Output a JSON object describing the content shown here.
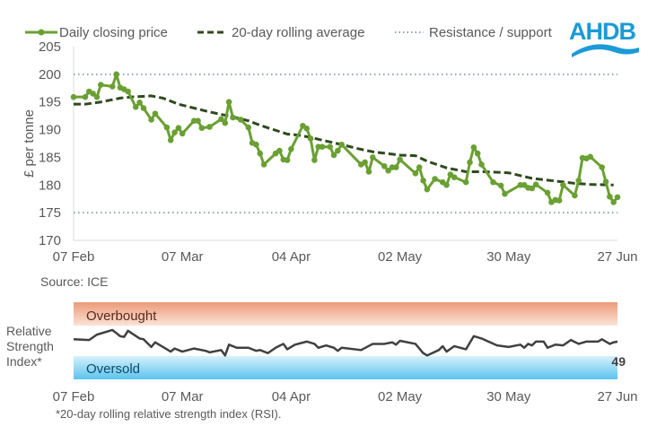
{
  "logo": {
    "text": "AHDB",
    "color": "#1a9ad6"
  },
  "colors": {
    "price": "#6aa033",
    "rolling": "#2f4a1f",
    "levels": "#8fa3b3",
    "rsi": "#404040",
    "overbought": "#f0a080",
    "oversold": "#7fd0f0"
  },
  "chart_data": [
    {
      "type": "line",
      "ylabel": "£ per tonne",
      "ylim": [
        170,
        205
      ],
      "yticks": [
        "170",
        "175",
        "180",
        "185",
        "190",
        "195",
        "200",
        "205"
      ],
      "xlim": [
        "2022-02-07",
        "2022-06-27"
      ],
      "xticks": [
        {
          "date": "2022-02-07",
          "label": "07 Feb"
        },
        {
          "date": "2022-03-07",
          "label": "07 Mar"
        },
        {
          "date": "2022-04-04",
          "label": "04 Apr"
        },
        {
          "date": "2022-05-02",
          "label": "02 May"
        },
        {
          "date": "2022-05-30",
          "label": "30 May"
        },
        {
          "date": "2022-06-27",
          "label": "27 Jun"
        }
      ],
      "legend": {
        "position": "top",
        "items": [
          "Daily closing price",
          "20-day rolling average",
          "Resistance / support"
        ]
      },
      "source": "Source: ICE",
      "levels": {
        "resistance": 200,
        "support": 175
      },
      "series": [
        {
          "name": "Daily closing price",
          "style": "solid-markers",
          "points": [
            [
              "2022-02-07",
              195.9
            ],
            [
              "2022-02-10",
              195.9
            ],
            [
              "2022-02-11",
              196.9
            ],
            [
              "2022-02-12",
              196.5
            ],
            [
              "2022-02-13",
              195.9
            ],
            [
              "2022-02-14",
              198.1
            ],
            [
              "2022-02-17",
              197.8
            ],
            [
              "2022-02-18",
              200.0
            ],
            [
              "2022-02-19",
              197.6
            ],
            [
              "2022-02-20",
              197.3
            ],
            [
              "2022-02-21",
              196.9
            ],
            [
              "2022-02-23",
              194.1
            ],
            [
              "2022-02-24",
              194.9
            ],
            [
              "2022-02-25",
              193.9
            ],
            [
              "2022-02-27",
              191.8
            ],
            [
              "2022-02-28",
              192.9
            ],
            [
              "2022-03-03",
              190.4
            ],
            [
              "2022-03-04",
              188.1
            ],
            [
              "2022-03-05",
              189.5
            ],
            [
              "2022-03-06",
              190.3
            ],
            [
              "2022-03-07",
              189.3
            ],
            [
              "2022-03-10",
              191.6
            ],
            [
              "2022-03-11",
              191.6
            ],
            [
              "2022-03-12",
              190.3
            ],
            [
              "2022-03-14",
              190.5
            ],
            [
              "2022-03-17",
              191.9
            ],
            [
              "2022-03-18",
              191.2
            ],
            [
              "2022-03-19",
              195.0
            ],
            [
              "2022-03-20",
              192.2
            ],
            [
              "2022-03-22",
              191.8
            ],
            [
              "2022-03-24",
              190.4
            ],
            [
              "2022-03-25",
              187.6
            ],
            [
              "2022-03-26",
              187.3
            ],
            [
              "2022-03-27",
              185.7
            ],
            [
              "2022-03-28",
              183.7
            ],
            [
              "2022-03-31",
              185.7
            ],
            [
              "2022-04-01",
              186.2
            ],
            [
              "2022-04-02",
              184.6
            ],
            [
              "2022-04-03",
              184.5
            ],
            [
              "2022-04-04",
              186.5
            ],
            [
              "2022-04-07",
              190.7
            ],
            [
              "2022-04-08",
              190.2
            ],
            [
              "2022-04-09",
              188.4
            ],
            [
              "2022-04-10",
              184.5
            ],
            [
              "2022-04-11",
              186.9
            ],
            [
              "2022-04-12",
              186.9
            ],
            [
              "2022-04-14",
              186.9
            ],
            [
              "2022-04-15",
              185.4
            ],
            [
              "2022-04-16",
              186.2
            ],
            [
              "2022-04-17",
              187.3
            ],
            [
              "2022-04-22",
              183.7
            ],
            [
              "2022-04-23",
              184.1
            ],
            [
              "2022-04-24",
              182.4
            ],
            [
              "2022-04-25",
              185.0
            ],
            [
              "2022-04-28",
              183.4
            ],
            [
              "2022-04-29",
              182.6
            ],
            [
              "2022-04-30",
              183.2
            ],
            [
              "2022-05-01",
              183.2
            ],
            [
              "2022-05-02",
              184.6
            ],
            [
              "2022-05-06",
              182.1
            ],
            [
              "2022-05-07",
              183.2
            ],
            [
              "2022-05-08",
              180.8
            ],
            [
              "2022-05-09",
              179.2
            ],
            [
              "2022-05-11",
              181.1
            ],
            [
              "2022-05-13",
              180.5
            ],
            [
              "2022-05-14",
              180.0
            ],
            [
              "2022-05-15",
              181.9
            ],
            [
              "2022-05-16",
              181.4
            ],
            [
              "2022-05-19",
              180.5
            ],
            [
              "2022-05-20",
              184.1
            ],
            [
              "2022-05-21",
              186.8
            ],
            [
              "2022-05-22",
              185.7
            ],
            [
              "2022-05-23",
              183.7
            ],
            [
              "2022-05-26",
              180.5
            ],
            [
              "2022-05-28",
              179.9
            ],
            [
              "2022-05-29",
              178.4
            ],
            [
              "2022-06-02",
              180.0
            ],
            [
              "2022-06-03",
              180.0
            ],
            [
              "2022-06-04",
              179.5
            ],
            [
              "2022-06-05",
              179.4
            ],
            [
              "2022-06-06",
              180.1
            ],
            [
              "2022-06-09",
              178.6
            ],
            [
              "2022-06-10",
              176.9
            ],
            [
              "2022-06-11",
              177.3
            ],
            [
              "2022-06-12",
              177.2
            ],
            [
              "2022-06-13",
              180.0
            ],
            [
              "2022-06-16",
              178.1
            ],
            [
              "2022-06-17",
              180.8
            ],
            [
              "2022-06-18",
              184.9
            ],
            [
              "2022-06-19",
              184.8
            ],
            [
              "2022-06-20",
              185.1
            ],
            [
              "2022-06-23",
              183.2
            ],
            [
              "2022-06-24",
              180.6
            ],
            [
              "2022-06-25",
              177.9
            ],
            [
              "2022-06-26",
              176.9
            ],
            [
              "2022-06-27",
              177.8
            ]
          ]
        },
        {
          "name": "20-day rolling average",
          "style": "dashed",
          "points": [
            [
              "2022-02-07",
              194.6
            ],
            [
              "2022-02-10",
              194.6
            ],
            [
              "2022-02-14",
              195.0
            ],
            [
              "2022-02-19",
              195.7
            ],
            [
              "2022-02-22",
              195.9
            ],
            [
              "2022-02-27",
              196.1
            ],
            [
              "2022-03-02",
              195.7
            ],
            [
              "2022-03-06",
              194.6
            ],
            [
              "2022-03-14",
              193.2
            ],
            [
              "2022-03-20",
              192.3
            ],
            [
              "2022-03-24",
              191.6
            ],
            [
              "2022-03-27",
              190.8
            ],
            [
              "2022-04-03",
              189.2
            ],
            [
              "2022-04-06",
              189.0
            ],
            [
              "2022-04-09",
              188.6
            ],
            [
              "2022-04-12",
              188.1
            ],
            [
              "2022-04-17",
              187.3
            ],
            [
              "2022-04-21",
              186.6
            ],
            [
              "2022-04-25",
              186.0
            ],
            [
              "2022-05-02",
              185.4
            ],
            [
              "2022-05-06",
              185.3
            ],
            [
              "2022-05-09",
              184.3
            ],
            [
              "2022-05-14",
              183.1
            ],
            [
              "2022-05-19",
              182.4
            ],
            [
              "2022-05-24",
              182.4
            ],
            [
              "2022-05-30",
              182.2
            ],
            [
              "2022-06-05",
              181.2
            ],
            [
              "2022-06-10",
              180.8
            ],
            [
              "2022-06-16",
              180.3
            ],
            [
              "2022-06-20",
              180.1
            ],
            [
              "2022-06-26",
              180.0
            ]
          ]
        }
      ]
    },
    {
      "type": "line",
      "ylabel": "Relative Strength Index*",
      "ylim": [
        0,
        100
      ],
      "bands": [
        {
          "label": "Overbought",
          "from": 70,
          "to": 100
        },
        {
          "label": "Oversold",
          "from": 0,
          "to": 30
        }
      ],
      "last_value_label": "49",
      "xticks": [
        {
          "date": "2022-02-07",
          "label": "07 Feb"
        },
        {
          "date": "2022-03-07",
          "label": "07 Mar"
        },
        {
          "date": "2022-04-04",
          "label": "04 Apr"
        },
        {
          "date": "2022-05-02",
          "label": "02 May"
        },
        {
          "date": "2022-05-30",
          "label": "30 May"
        },
        {
          "date": "2022-06-27",
          "label": "27 Jun"
        }
      ],
      "footnote": "*20-day rolling relative strength index (RSI).",
      "series": [
        {
          "points": [
            [
              "2022-02-07",
              52
            ],
            [
              "2022-02-11",
              51
            ],
            [
              "2022-02-13",
              58
            ],
            [
              "2022-02-17",
              64
            ],
            [
              "2022-02-19",
              56
            ],
            [
              "2022-02-20",
              55
            ],
            [
              "2022-02-21",
              63
            ],
            [
              "2022-02-24",
              53
            ],
            [
              "2022-02-25",
              52
            ],
            [
              "2022-02-27",
              42
            ],
            [
              "2022-02-28",
              48
            ],
            [
              "2022-03-04",
              36
            ],
            [
              "2022-03-05",
              40
            ],
            [
              "2022-03-07",
              36
            ],
            [
              "2022-03-10",
              40
            ],
            [
              "2022-03-13",
              37
            ],
            [
              "2022-03-14",
              35
            ],
            [
              "2022-03-17",
              38
            ],
            [
              "2022-03-18",
              31
            ],
            [
              "2022-03-19",
              45
            ],
            [
              "2022-03-21",
              41
            ],
            [
              "2022-03-24",
              41
            ],
            [
              "2022-03-26",
              37
            ],
            [
              "2022-03-27",
              38
            ],
            [
              "2022-03-29",
              34
            ],
            [
              "2022-03-31",
              41
            ],
            [
              "2022-04-02",
              46
            ],
            [
              "2022-04-03",
              39
            ],
            [
              "2022-04-05",
              45
            ],
            [
              "2022-04-08",
              49
            ],
            [
              "2022-04-10",
              46
            ],
            [
              "2022-04-11",
              41
            ],
            [
              "2022-04-13",
              44
            ],
            [
              "2022-04-15",
              41
            ],
            [
              "2022-04-16",
              37
            ],
            [
              "2022-04-17",
              41
            ],
            [
              "2022-04-22",
              38
            ],
            [
              "2022-04-25",
              46
            ],
            [
              "2022-04-28",
              46
            ],
            [
              "2022-04-30",
              48
            ],
            [
              "2022-05-01",
              45
            ],
            [
              "2022-05-02",
              50
            ],
            [
              "2022-05-06",
              46
            ],
            [
              "2022-05-08",
              34
            ],
            [
              "2022-05-09",
              31
            ],
            [
              "2022-05-12",
              38
            ],
            [
              "2022-05-13",
              43
            ],
            [
              "2022-05-14",
              36
            ],
            [
              "2022-05-16",
              43
            ],
            [
              "2022-05-19",
              39
            ],
            [
              "2022-05-21",
              56
            ],
            [
              "2022-05-23",
              53
            ],
            [
              "2022-05-27",
              44
            ],
            [
              "2022-05-30",
              42
            ],
            [
              "2022-06-02",
              45
            ],
            [
              "2022-06-03",
              41
            ],
            [
              "2022-06-04",
              46
            ],
            [
              "2022-06-05",
              44
            ],
            [
              "2022-06-06",
              49
            ],
            [
              "2022-06-08",
              49
            ],
            [
              "2022-06-09",
              41
            ],
            [
              "2022-06-11",
              45
            ],
            [
              "2022-06-13",
              44
            ],
            [
              "2022-06-15",
              51
            ],
            [
              "2022-06-17",
              46
            ],
            [
              "2022-06-19",
              49
            ],
            [
              "2022-06-22",
              49
            ],
            [
              "2022-06-23",
              52
            ],
            [
              "2022-06-25",
              46
            ],
            [
              "2022-06-26",
              48
            ],
            [
              "2022-06-27",
              49
            ]
          ]
        }
      ]
    }
  ]
}
